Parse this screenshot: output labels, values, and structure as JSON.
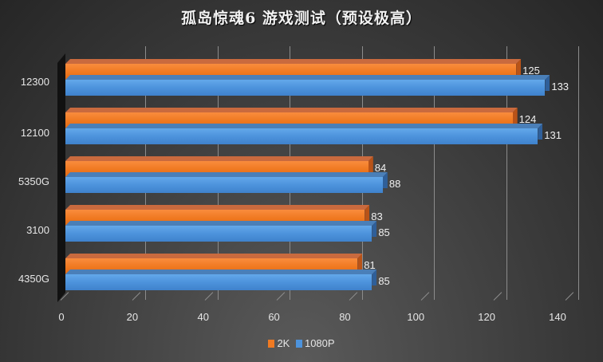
{
  "chart_data": {
    "type": "bar",
    "orientation": "horizontal",
    "style": "3d-clustered",
    "title": "孤岛惊魂6 游戏测试（预设极高）",
    "categories": [
      "12300",
      "12100",
      "5350G",
      "3100",
      "4350G"
    ],
    "series": [
      {
        "name": "2K",
        "color": "#f07a22",
        "values": [
          125,
          124,
          84,
          83,
          81
        ]
      },
      {
        "name": "1080P",
        "color": "#4d93dc",
        "values": [
          133,
          131,
          88,
          85,
          85
        ]
      }
    ],
    "xlabel": "",
    "ylabel": "",
    "xlim": [
      0,
      140
    ],
    "xticks": [
      "0",
      "20",
      "40",
      "60",
      "80",
      "100",
      "120",
      "140"
    ],
    "grid": true,
    "legend_position": "bottom"
  },
  "legend": {
    "items": [
      {
        "label": "2K",
        "color": "#f07a22"
      },
      {
        "label": "1080P",
        "color": "#4d93dc"
      }
    ]
  }
}
